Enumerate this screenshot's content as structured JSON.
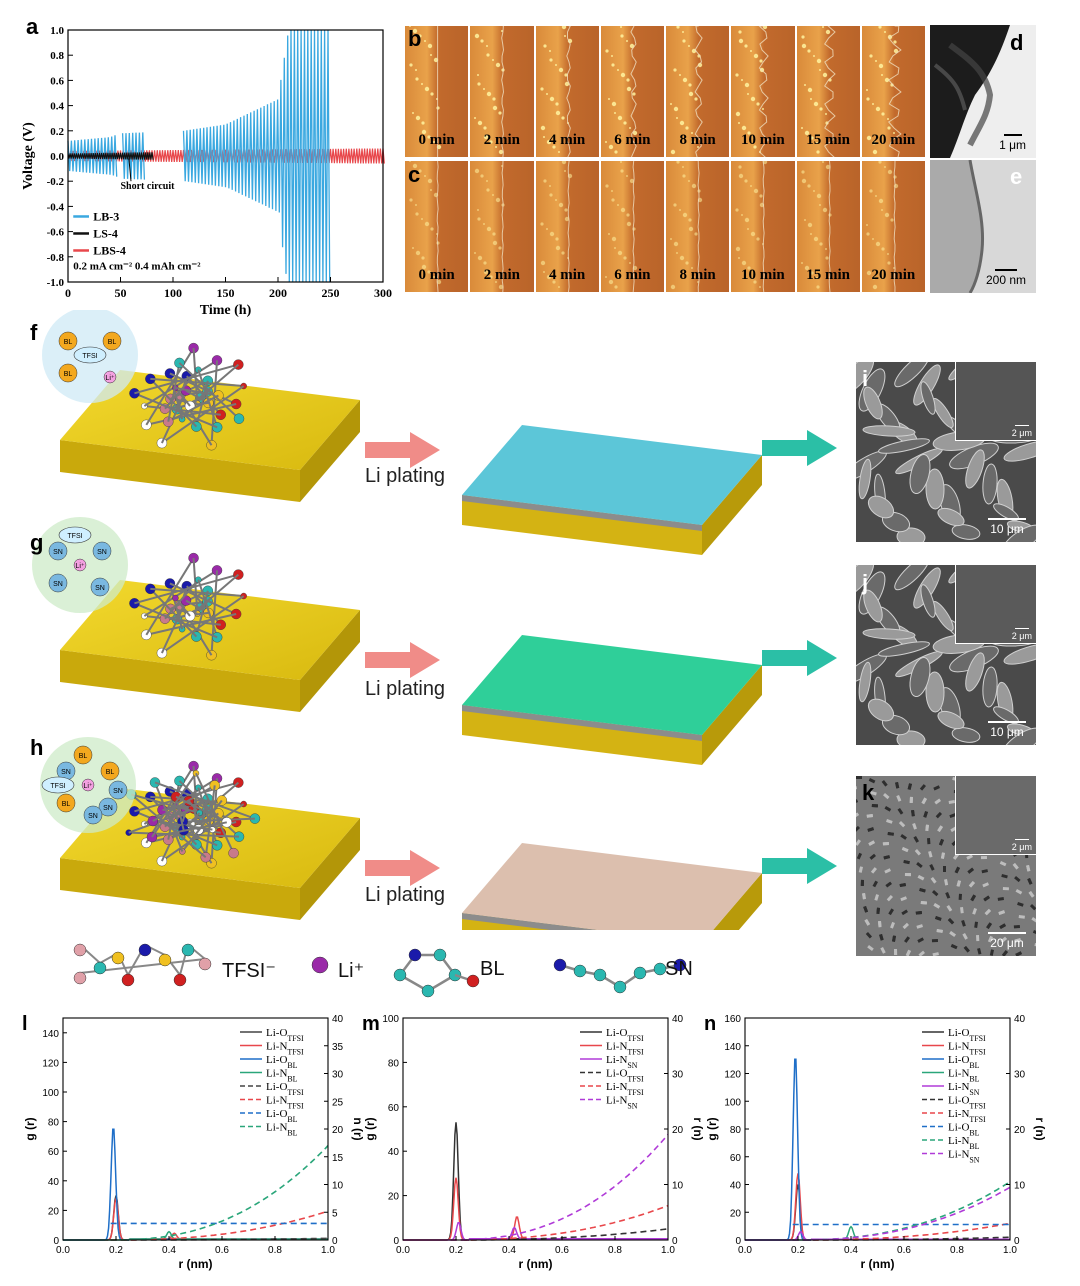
{
  "panel_letters": {
    "a": "a",
    "b": "b",
    "c": "c",
    "d": "d",
    "e": "e",
    "f": "f",
    "g": "g",
    "h": "h",
    "i": "i",
    "j": "j",
    "k": "k",
    "l": "l",
    "m": "m",
    "n": "n"
  },
  "colors": {
    "lb3": "#3aa8e0",
    "ls4": "#111111",
    "lbs4": "#e8474b",
    "gold": "#e6c619",
    "blue_surface": "#5cc6d8",
    "green_surface": "#2fcf99",
    "pink_surface": "#dcbfae",
    "arrow_pink": "#f08c88",
    "arrow_teal": "#2bbfa6"
  },
  "micro_times": [
    "0 min",
    "2 min",
    "4 min",
    "6 min",
    "8 min",
    "10 min",
    "15 min",
    "20 min"
  ],
  "scale_d": "1 μm",
  "scale_e": "200 nm",
  "scale_i": "10 μm",
  "scale_i_inset": "2 μm",
  "scale_j": "10 μm",
  "scale_j_inset": "2 μm",
  "scale_k": "20 μm",
  "scale_k_inset": "2 μm",
  "li_plating": "Li plating",
  "bubble_f": [
    "BL",
    "BL",
    "BL",
    "Li⁺",
    "TFSI"
  ],
  "bubble_g": [
    "SN",
    "SN",
    "SN",
    "SN",
    "Li⁺",
    "TFSI"
  ],
  "bubble_h": [
    "SN",
    "BL",
    "BL",
    "SN",
    "Li⁺",
    "BL",
    "SN",
    "TFSI",
    "SN"
  ],
  "mol_legend": [
    "TFSI⁻",
    "Li⁺",
    "BL",
    "SN"
  ],
  "chart_data": [
    {
      "panel": "a",
      "type": "line",
      "xlabel": "Time (h)",
      "ylabel": "Voltage (V)",
      "xlim": [
        0,
        300
      ],
      "ylim": [
        -1.0,
        1.0
      ],
      "xticks": [
        0,
        50,
        100,
        150,
        200,
        250,
        300
      ],
      "yticks": [
        -1.0,
        -0.8,
        -0.6,
        -0.4,
        -0.2,
        0.0,
        0.2,
        0.4,
        0.6,
        0.8,
        1.0
      ],
      "annotation": "Short circuit",
      "condition": "0.2 mA cm⁻² 0.4 mAh cm⁻²",
      "series": [
        {
          "name": "LB-3",
          "color": "#3aa8e0",
          "amplitude_envelope": [
            [
              0,
              0.12
            ],
            [
              40,
              0.15
            ],
            [
              50,
              0.18
            ],
            [
              110,
              0.2
            ],
            [
              150,
              0.25
            ],
            [
              200,
              0.45
            ],
            [
              210,
              1.0
            ],
            [
              250,
              1.0
            ]
          ]
        },
        {
          "name": "LS-4",
          "color": "#111111",
          "amplitude_envelope": [
            [
              0,
              0.02
            ],
            [
              80,
              0.03
            ]
          ]
        },
        {
          "name": "LBS-4",
          "color": "#e8474b",
          "amplitude_envelope": [
            [
              0,
              0.04
            ],
            [
              300,
              0.06
            ]
          ]
        }
      ]
    },
    {
      "panel": "l",
      "type": "line",
      "xlabel": "r (nm)",
      "ylabel": "g (r)",
      "ylabel_right": "n (r)",
      "xlim": [
        0.0,
        1.0
      ],
      "ylim": [
        0,
        150
      ],
      "ylim_right": [
        0,
        40
      ],
      "xticks": [
        0.0,
        0.2,
        0.4,
        0.6,
        0.8,
        1.0
      ],
      "yticks": [
        0,
        20,
        40,
        60,
        80,
        100,
        120,
        140
      ],
      "yticks_right": [
        0,
        5,
        10,
        15,
        20,
        25,
        30,
        35,
        40
      ],
      "legend": [
        "Li-O_TFSI",
        "Li-N_TFSI",
        "Li-O_BL",
        "Li-N_BL",
        "Li-O_TFSI",
        "Li-N_TFSI",
        "Li-O_BL",
        "Li-N_BL"
      ],
      "series": [
        {
          "name": "Li-O_TFSI",
          "style": "solid",
          "axis": "left",
          "color": "#444444",
          "peaks": [
            [
              0.2,
              30
            ]
          ]
        },
        {
          "name": "Li-N_TFSI",
          "style": "solid",
          "axis": "left",
          "color": "#e8474b",
          "peaks": [
            [
              0.2,
              28
            ],
            [
              0.42,
              4
            ]
          ]
        },
        {
          "name": "Li-O_BL",
          "style": "solid",
          "axis": "left",
          "color": "#1f6fc8",
          "peaks": [
            [
              0.19,
              77
            ]
          ]
        },
        {
          "name": "Li-N_BL",
          "style": "solid",
          "axis": "left",
          "color": "#2aa67a",
          "peaks": [
            [
              0.4,
              5
            ]
          ]
        },
        {
          "name": "Li-O_TFSI",
          "style": "dashed",
          "axis": "right",
          "color": "#444444",
          "end": 0.3
        },
        {
          "name": "Li-N_TFSI",
          "style": "dashed",
          "axis": "right",
          "color": "#e8474b",
          "end": 5.2
        },
        {
          "name": "Li-O_BL",
          "style": "dashed",
          "axis": "right",
          "color": "#1f6fc8",
          "plateau": 3
        },
        {
          "name": "Li-N_BL",
          "style": "dashed",
          "axis": "right",
          "color": "#2aa67a",
          "end": 17
        }
      ]
    },
    {
      "panel": "m",
      "type": "line",
      "xlabel": "r (nm)",
      "ylabel": "g (r)",
      "ylabel_right": "r (n)",
      "xlim": [
        0.0,
        1.0
      ],
      "ylim": [
        0,
        100
      ],
      "ylim_right": [
        0,
        40
      ],
      "xticks": [
        0.0,
        0.2,
        0.4,
        0.6,
        0.8,
        1.0
      ],
      "yticks": [
        0,
        20,
        40,
        60,
        80,
        100
      ],
      "yticks_right": [
        0,
        10,
        20,
        30,
        40
      ],
      "legend": [
        "Li-O_TFSI",
        "Li-N_TFSI",
        "Li-N_SN",
        "Li-O_TFSI",
        "Li-N_TFSI",
        "Li-N_SN"
      ],
      "series": [
        {
          "name": "Li-O_TFSI",
          "style": "solid",
          "axis": "left",
          "color": "#333333",
          "peaks": [
            [
              0.2,
              53
            ]
          ]
        },
        {
          "name": "Li-N_TFSI",
          "style": "solid",
          "axis": "left",
          "color": "#e8474b",
          "peaks": [
            [
              0.2,
              28
            ],
            [
              0.43,
              10
            ]
          ]
        },
        {
          "name": "Li-N_SN",
          "style": "solid",
          "axis": "left",
          "color": "#b03bd8",
          "peaks": [
            [
              0.21,
              8
            ],
            [
              0.42,
              5
            ]
          ]
        },
        {
          "name": "Li-O_TFSI",
          "style": "dashed",
          "axis": "right",
          "color": "#333333",
          "end": 2
        },
        {
          "name": "Li-N_TFSI",
          "style": "dashed",
          "axis": "right",
          "color": "#e8474b",
          "end": 6.2
        },
        {
          "name": "Li-N_SN",
          "style": "dashed",
          "axis": "right",
          "color": "#b03bd8",
          "end": 19
        }
      ]
    },
    {
      "panel": "n",
      "type": "line",
      "xlabel": "r (nm)",
      "ylabel": "g (r)",
      "ylabel_right": "r (n)",
      "xlim": [
        0.0,
        1.0
      ],
      "ylim": [
        0,
        160
      ],
      "ylim_right": [
        0,
        40
      ],
      "xticks": [
        0.0,
        0.2,
        0.4,
        0.6,
        0.8,
        1.0
      ],
      "yticks": [
        0,
        20,
        40,
        60,
        80,
        100,
        120,
        140,
        160
      ],
      "yticks_right": [
        0,
        10,
        20,
        30,
        40
      ],
      "legend": [
        "Li-O_TFSI",
        "Li-N_TFSI",
        "Li-O_BL",
        "Li-N_BL",
        "Li-N_SN",
        "Li-O_TFSI",
        "Li-N_TFSI",
        "Li-O_BL",
        "Li-N_BL",
        "Li-N_SN"
      ],
      "series": [
        {
          "name": "Li-O_TFSI",
          "style": "solid",
          "axis": "left",
          "color": "#333333",
          "peaks": [
            [
              0.2,
              40
            ]
          ]
        },
        {
          "name": "Li-N_TFSI",
          "style": "solid",
          "axis": "left",
          "color": "#e8474b",
          "peaks": [
            [
              0.2,
              48
            ]
          ]
        },
        {
          "name": "Li-O_BL",
          "style": "solid",
          "axis": "left",
          "color": "#1f6fc8",
          "peaks": [
            [
              0.19,
              134
            ]
          ]
        },
        {
          "name": "Li-N_BL",
          "style": "solid",
          "axis": "left",
          "color": "#2aa67a",
          "peaks": [
            [
              0.4,
              9
            ]
          ]
        },
        {
          "name": "Li-N_SN",
          "style": "solid",
          "axis": "left",
          "color": "#b03bd8",
          "peaks": [
            [
              0.21,
              6
            ]
          ]
        },
        {
          "name": "Li-O_TFSI",
          "style": "dashed",
          "axis": "right",
          "color": "#333333",
          "end": 0.5
        },
        {
          "name": "Li-N_TFSI",
          "style": "dashed",
          "axis": "right",
          "color": "#e8474b",
          "end": 3
        },
        {
          "name": "Li-O_BL",
          "style": "dashed",
          "axis": "right",
          "color": "#1f6fc8",
          "plateau": 2.8
        },
        {
          "name": "Li-N_BL",
          "style": "dashed",
          "axis": "right",
          "color": "#2aa67a",
          "end": 10.5
        },
        {
          "name": "Li-N_SN",
          "style": "dashed",
          "axis": "right",
          "color": "#b03bd8",
          "end": 9.5
        }
      ]
    }
  ]
}
